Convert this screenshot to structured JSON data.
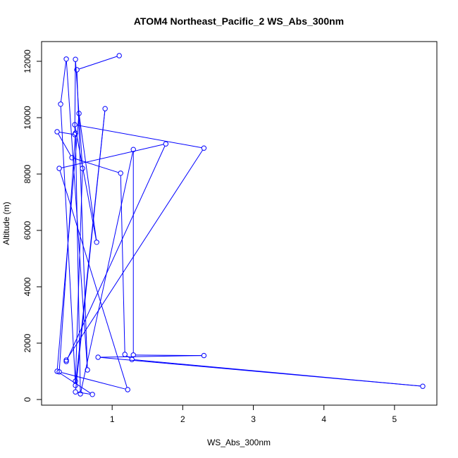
{
  "chart_data": {
    "type": "line",
    "title": "ATOM4 Northeast_Pacific_2 WS_Abs_300nm",
    "xlabel": "WS_Abs_300nm",
    "ylabel": "Altitude (m)",
    "xlim": [
      0.0,
      5.6
    ],
    "ylim": [
      -200,
      12700
    ],
    "x_ticks": [
      1,
      2,
      3,
      4,
      5
    ],
    "y_ticks": [
      0,
      2000,
      4000,
      6000,
      8000,
      10000,
      12000
    ],
    "grid": false,
    "color": "#0000ff",
    "series": [
      {
        "marker": "open-circle",
        "points": [
          {
            "x": 1.1,
            "y": 12200
          },
          {
            "x": 0.5,
            "y": 11700
          },
          {
            "x": 0.65,
            "y": 1050
          },
          {
            "x": 0.35,
            "y": 12080
          },
          {
            "x": 0.27,
            "y": 10480
          },
          {
            "x": 0.48,
            "y": 500
          },
          {
            "x": 0.9,
            "y": 10320
          },
          {
            "x": 0.48,
            "y": 270
          },
          {
            "x": 0.72,
            "y": 180
          },
          {
            "x": 0.22,
            "y": 1000
          },
          {
            "x": 0.53,
            "y": 10150
          },
          {
            "x": 0.78,
            "y": 5580
          },
          {
            "x": 0.47,
            "y": 9750
          },
          {
            "x": 2.3,
            "y": 8920
          },
          {
            "x": 0.35,
            "y": 1400
          },
          {
            "x": 0.35,
            "y": 1350
          },
          {
            "x": 1.76,
            "y": 9070
          },
          {
            "x": 0.25,
            "y": 8200
          },
          {
            "x": 1.22,
            "y": 350
          },
          {
            "x": 0.25,
            "y": 980
          },
          {
            "x": 0.48,
            "y": 9450
          },
          {
            "x": 0.55,
            "y": 200
          },
          {
            "x": 1.3,
            "y": 8870
          },
          {
            "x": 1.3,
            "y": 1580
          },
          {
            "x": 2.3,
            "y": 1560
          },
          {
            "x": 0.8,
            "y": 1500
          },
          {
            "x": 5.4,
            "y": 470
          },
          {
            "x": 1.28,
            "y": 1420
          },
          {
            "x": 1.18,
            "y": 1600
          },
          {
            "x": 1.12,
            "y": 8030
          },
          {
            "x": 0.43,
            "y": 8580
          },
          {
            "x": 0.22,
            "y": 9500
          },
          {
            "x": 0.47,
            "y": 9400
          },
          {
            "x": 0.48,
            "y": 12070
          },
          {
            "x": 0.58,
            "y": 8200
          },
          {
            "x": 0.48,
            "y": 650
          }
        ]
      }
    ]
  }
}
